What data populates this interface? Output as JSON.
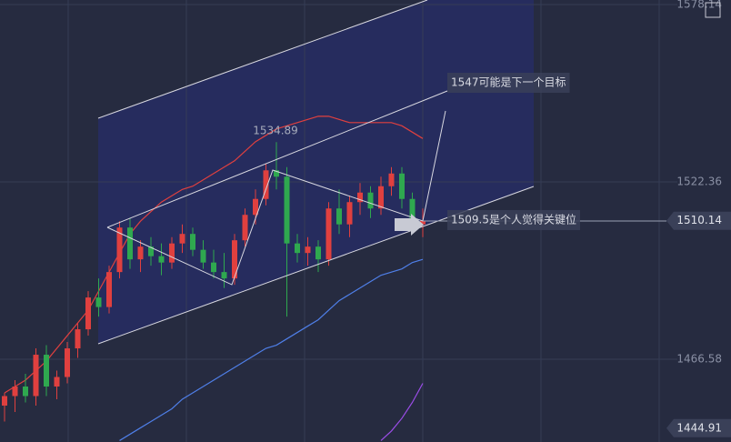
{
  "chart_data": {
    "type": "candlestick",
    "categories": [
      null,
      null,
      null,
      null,
      null,
      null,
      null,
      null,
      null,
      null,
      null,
      null,
      null,
      null,
      null,
      null,
      null,
      null,
      null,
      null,
      null,
      null,
      null,
      null,
      null,
      null,
      null,
      null,
      null,
      null,
      null,
      null,
      null,
      null,
      null,
      null,
      null,
      null,
      null,
      null,
      null
    ],
    "open": [
      1452,
      1455,
      1458,
      1455,
      1468,
      1458,
      1461,
      1470,
      1476,
      1486,
      1483,
      1494,
      1508,
      1498,
      1502,
      1499,
      1497,
      1503,
      1506,
      1501,
      1497,
      1494,
      1492,
      1504,
      1512,
      1517,
      1526,
      1524,
      1503,
      1500,
      1502,
      1498,
      1514,
      1509,
      1516,
      1519,
      1514,
      1521,
      1525,
      1517,
      1509
    ],
    "high": [
      1456,
      1460,
      1462,
      1470,
      1471,
      1463,
      1472,
      1478,
      1488,
      1492,
      1496,
      1510,
      1511,
      1504,
      1505,
      1503,
      1505,
      1509,
      1508,
      1504,
      1501,
      1500,
      1506,
      1514,
      1520,
      1528,
      1534.89,
      1527,
      1506,
      1505,
      1504,
      1516,
      1520,
      1518,
      1522,
      1521,
      1524,
      1527,
      1527,
      1519,
      1514
    ],
    "low": [
      1447,
      1450,
      1453,
      1452,
      1455,
      1454,
      1459,
      1467,
      1474,
      1480,
      1481,
      1492,
      1495,
      1494,
      1496,
      1493,
      1495,
      1500,
      1499,
      1495,
      1492,
      1489,
      1490,
      1502,
      1509,
      1515,
      1520,
      1480,
      1497,
      1496,
      1494,
      1496,
      1506,
      1505,
      1512,
      1511,
      1512,
      1518,
      1514,
      1506,
      1505
    ],
    "close": [
      1455,
      1458,
      1455,
      1468,
      1458,
      1461,
      1470,
      1476,
      1486,
      1483,
      1494,
      1508,
      1498,
      1502,
      1499,
      1497,
      1503,
      1506,
      1501,
      1497,
      1494,
      1492,
      1504,
      1512,
      1517,
      1526,
      1524,
      1503,
      1500,
      1502,
      1498,
      1514,
      1509,
      1516,
      1519,
      1514,
      1521,
      1525,
      1517,
      1509,
      1510.14
    ],
    "up_color": "#e0403f",
    "down_color": "#2fa84f",
    "overlays": [
      {
        "color": "#e0403f",
        "values": [
          1456,
          1458,
          1460,
          1463,
          1466,
          1470,
          1474,
          1478,
          1482,
          1488,
          1494,
          1500,
          1506,
          1510,
          1513,
          1516,
          1518,
          1520,
          1521,
          1523,
          1525,
          1527,
          1529,
          1532,
          1535,
          1537,
          1539,
          1540,
          1541,
          1542,
          1543,
          1543,
          1542,
          1541,
          1541,
          1541,
          1541,
          1541,
          1540,
          1538,
          1536
        ]
      },
      {
        "color": "#4f7fe8",
        "values": [
          null,
          null,
          null,
          null,
          null,
          null,
          null,
          null,
          null,
          null,
          null,
          1441,
          1443,
          1445,
          1447,
          1449,
          1451,
          1454,
          1456,
          1458,
          1460,
          1462,
          1464,
          1466,
          1468,
          1470,
          1471,
          1473,
          1475,
          1477,
          1479,
          1482,
          1485,
          1487,
          1489,
          1491,
          1493,
          1494,
          1495,
          1497,
          1498
        ]
      },
      {
        "color": "#9b4de8",
        "values": [
          null,
          null,
          null,
          null,
          null,
          null,
          null,
          null,
          null,
          null,
          null,
          null,
          null,
          null,
          null,
          null,
          null,
          null,
          null,
          null,
          null,
          null,
          null,
          null,
          null,
          null,
          null,
          null,
          null,
          null,
          null,
          null,
          null,
          null,
          null,
          null,
          1441,
          1444,
          1448,
          1453,
          1459
        ]
      }
    ],
    "ylim": [
      1440.55,
      1579.57
    ],
    "yticks": [
      1578.14,
      1522.36,
      1466.58
    ],
    "price_tags": [
      1510.14,
      1444.91
    ],
    "peak_label": 1534.89,
    "annotations": [
      "1547可能是下一个目标",
      "1509.5是个人觉得关键位"
    ],
    "grid": true
  }
}
